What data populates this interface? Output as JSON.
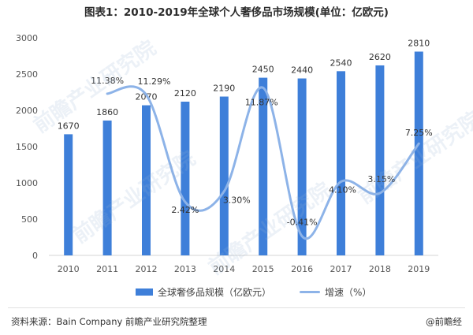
{
  "title": "图表1：2010-2019年全球个人奢侈品市场规模(单位：亿欧元)",
  "chart_data": {
    "type": "bar+line",
    "categories": [
      "2010",
      "2011",
      "2012",
      "2013",
      "2014",
      "2015",
      "2016",
      "2017",
      "2018",
      "2019"
    ],
    "series": [
      {
        "name": "全球奢侈品规模（亿欧元）",
        "type": "bar",
        "axis": "left",
        "values": [
          1670,
          1860,
          2070,
          2120,
          2190,
          2450,
          2440,
          2540,
          2620,
          2810
        ],
        "labels": [
          "1670",
          "1860",
          "2070",
          "2120",
          "2190",
          "2450",
          "2440",
          "2540",
          "2620",
          "2810"
        ]
      },
      {
        "name": "增速（%）",
        "type": "line",
        "axis": "right",
        "values": [
          null,
          11.38,
          11.29,
          2.42,
          3.3,
          11.87,
          -0.41,
          4.1,
          3.15,
          7.25
        ],
        "labels": [
          "",
          "11.38%",
          "11.29%",
          "2.42%",
          "3.30%",
          "11.87%",
          "-0.41%",
          "4.10%",
          "3.15%",
          "7.25%"
        ]
      }
    ],
    "yticks": [
      "0",
      "500",
      "1000",
      "1500",
      "2000",
      "2500",
      "3000"
    ],
    "ylim": [
      0,
      3000
    ],
    "y2lim": [
      -2,
      16
    ],
    "colors": {
      "bar": "#3e7fd9",
      "line": "#8db3e8"
    },
    "legend_position": "bottom"
  },
  "legend": {
    "bar_label": "全球奢侈品规模（亿欧元）",
    "line_label": "增速（%）"
  },
  "footer": {
    "source": "资料来源：Bain Company 前瞻产业研究院整理",
    "brand": "@前瞻经"
  },
  "watermark": "前瞻产业研究院"
}
